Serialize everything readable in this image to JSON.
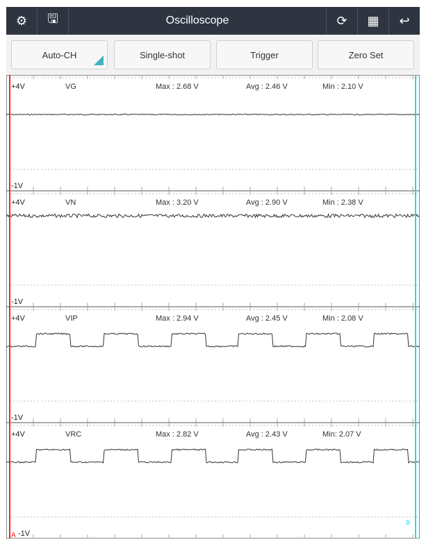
{
  "header": {
    "title": "Oscilloscope",
    "left_icons": [
      "gear-icon",
      "save-list-icon"
    ],
    "right_icons": [
      "refresh-icon",
      "grid-icon",
      "return-icon"
    ]
  },
  "toolbar": {
    "buttons": [
      {
        "label": "Auto-CH"
      },
      {
        "label": "Single-shot"
      },
      {
        "label": "Trigger"
      },
      {
        "label": "Zero Set"
      }
    ]
  },
  "scale": {
    "top": "+4V",
    "bottom": "-1V"
  },
  "channels": [
    {
      "name": "VG",
      "max": "Max  : 2.68 V",
      "avg": "Avg : 2.46 V",
      "min": "Min : 2.10 V",
      "wave": "flat"
    },
    {
      "name": "VN",
      "max": "Max : 3.20 V",
      "avg": "Avg : 2.90 V",
      "min": "Min : 2.38 V",
      "wave": "noisy"
    },
    {
      "name": "VIP",
      "max": "Max : 2.94 V",
      "avg": "Avg : 2.45 V",
      "min": "Min : 2.08 V",
      "wave": "square"
    },
    {
      "name": "VRC",
      "max": "Max  : 2.82 V",
      "avg": "Avg : 2.43 V",
      "min": "Min: 2.07 V",
      "wave": "square"
    }
  ],
  "cursors": {
    "a": {
      "label": "A",
      "color": "#ff2020"
    },
    "b": {
      "label": "B",
      "color": "#22d8ee"
    }
  }
}
